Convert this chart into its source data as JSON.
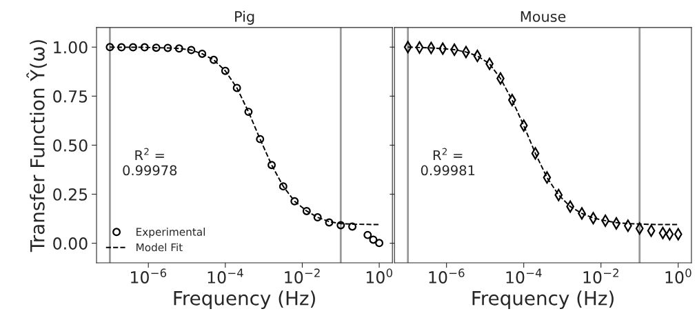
{
  "chart_data": [
    {
      "type": "scatter",
      "title": "Pig",
      "xlabel": "Frequency (Hz)",
      "ylabel": "Transfer Function Ŷ(ω)",
      "log": "x",
      "legend": "bottom left",
      "grid": false,
      "xlim": [
        4.5e-08,
        2.2
      ],
      "ylim": [
        -0.1,
        1.1
      ],
      "xticks": [
        {
          "value": 1e-06,
          "label": "10$^{−6}$"
        },
        {
          "value": 0.0001,
          "label": "10$^{−4}$"
        },
        {
          "value": 0.01,
          "label": "10$^{−2}$"
        },
        {
          "value": 1,
          "label": "10$^{0}$"
        }
      ],
      "yticks": [
        {
          "value": 0,
          "label": "0.00"
        },
        {
          "value": 0.25,
          "label": "0.25"
        },
        {
          "value": 0.5,
          "label": "0.50"
        },
        {
          "value": 0.75,
          "label": "0.75"
        },
        {
          "value": 1,
          "label": "1.00"
        }
      ],
      "ref_lines": [
        {
          "axis": "x",
          "value": 1e-07,
          "color": "#999999"
        },
        {
          "axis": "x",
          "value": 0.1,
          "color": "#999999"
        }
      ],
      "annotations": [
        "R$^{2}$ =\n0.99978"
      ],
      "series": [
        {
          "name": "Experimental",
          "marker": "circle",
          "color": "#000000",
          "x": [
            1e-07,
            2e-07,
            4e-07,
            8e-07,
            1.6e-06,
            3.2e-06,
            6.3e-06,
            1.3e-05,
            2.5e-05,
            5e-05,
            0.0001,
            0.0002,
            0.0004,
            0.0008,
            0.0016,
            0.0032,
            0.0063,
            0.013,
            0.025,
            0.05,
            0.1,
            0.2,
            0.5,
            0.7,
            1
          ],
          "values": [
            1.0,
            0.999,
            0.999,
            0.999,
            0.997,
            0.996,
            0.993,
            0.985,
            0.966,
            0.935,
            0.879,
            0.792,
            0.67,
            0.531,
            0.399,
            0.29,
            0.214,
            0.164,
            0.132,
            0.106,
            0.092,
            0.085,
            0.042,
            0.018,
            0.001
          ]
        },
        {
          "name": "Model Fit",
          "type": "line",
          "line_style": "dashed",
          "marker": "none",
          "color": "#000000",
          "x": [
            1e-07,
            2e-07,
            4e-07,
            8e-07,
            1.6e-06,
            3.2e-06,
            6.3e-06,
            1.3e-05,
            2.5e-05,
            5e-05,
            0.0001,
            0.0002,
            0.0004,
            0.0008,
            0.0016,
            0.0032,
            0.0063,
            0.013,
            0.025,
            0.05,
            0.1,
            0.2,
            0.5,
            0.7,
            1
          ],
          "values": [
            1.0,
            0.999,
            0.999,
            0.999,
            0.997,
            0.996,
            0.993,
            0.985,
            0.966,
            0.935,
            0.879,
            0.792,
            0.67,
            0.531,
            0.399,
            0.29,
            0.214,
            0.164,
            0.132,
            0.11,
            0.1,
            0.097,
            0.096,
            0.095,
            0.095
          ]
        }
      ]
    },
    {
      "type": "scatter",
      "title": "Mouse",
      "xlabel": "Frequency (Hz)",
      "log": "x",
      "grid": false,
      "tick_labels": "x",
      "xlim": [
        4.5e-08,
        2.2
      ],
      "ylim": [
        -0.1,
        1.1
      ],
      "xticks": [
        {
          "value": 1e-06,
          "label": "10$^{−6}$"
        },
        {
          "value": 0.0001,
          "label": "10$^{−4}$"
        },
        {
          "value": 0.01,
          "label": "10$^{−2}$"
        },
        {
          "value": 1,
          "label": "10$^{0}$"
        }
      ],
      "yticks": [
        0,
        0.25,
        0.5,
        0.75,
        1
      ],
      "ref_lines": [
        {
          "axis": "x",
          "value": 1e-07,
          "color": "#999999"
        },
        {
          "axis": "x",
          "value": 0.1,
          "color": "#999999"
        }
      ],
      "annotations": [
        "R$^{2}$ =\n0.99981"
      ],
      "series": [
        {
          "marker": "diamond",
          "color": "#000000",
          "x": [
            1e-07,
            2e-07,
            4e-07,
            8e-07,
            1.6e-06,
            3.2e-06,
            6.3e-06,
            1.3e-05,
            2.5e-05,
            5e-05,
            0.0001,
            0.0002,
            0.0004,
            0.0008,
            0.0016,
            0.0032,
            0.0063,
            0.013,
            0.025,
            0.05,
            0.1,
            0.2,
            0.4,
            0.6,
            1
          ],
          "values": [
            1.0,
            0.998,
            0.996,
            0.992,
            0.987,
            0.975,
            0.955,
            0.915,
            0.84,
            0.73,
            0.6,
            0.458,
            0.335,
            0.246,
            0.187,
            0.152,
            0.128,
            0.115,
            0.101,
            0.089,
            0.075,
            0.064,
            0.052,
            0.046,
            0.046
          ]
        },
        {
          "type": "line",
          "line_style": "dashed",
          "marker": "none",
          "color": "#000000",
          "x": [
            1e-07,
            2e-07,
            4e-07,
            8e-07,
            1.6e-06,
            3.2e-06,
            6.3e-06,
            1.3e-05,
            2.5e-05,
            5e-05,
            0.0001,
            0.0002,
            0.0004,
            0.0008,
            0.0016,
            0.0032,
            0.0063,
            0.013,
            0.025,
            0.05,
            0.1,
            0.2,
            0.4,
            0.6,
            1
          ],
          "values": [
            1.0,
            0.998,
            0.996,
            0.992,
            0.987,
            0.975,
            0.955,
            0.915,
            0.84,
            0.73,
            0.6,
            0.458,
            0.335,
            0.246,
            0.187,
            0.152,
            0.128,
            0.115,
            0.105,
            0.1,
            0.098,
            0.096,
            0.095,
            0.095,
            0.095
          ]
        }
      ]
    }
  ]
}
